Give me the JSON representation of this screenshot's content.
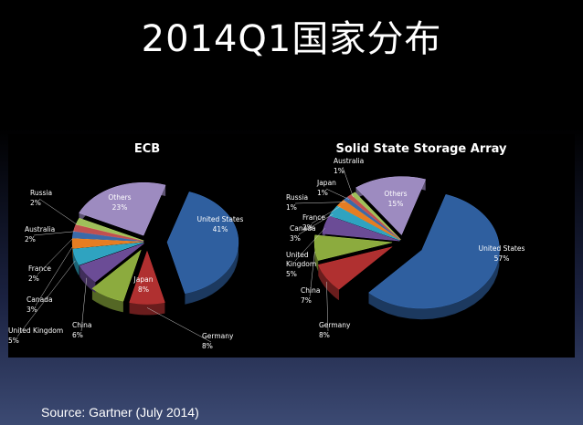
{
  "slide": {
    "title": "2014Q1国家分布",
    "source": "Source: Gartner (July 2014)"
  },
  "chart_data": [
    {
      "type": "pie",
      "title": "ECB",
      "slices": [
        {
          "label": "United States",
          "value": 41,
          "color": "#2f5f9f",
          "text": "41%"
        },
        {
          "label": "Germany",
          "value": 8,
          "color": "#b03030",
          "text": "8%"
        },
        {
          "label": "Japan",
          "value": 8,
          "color": "#8cab3e",
          "text": "8%"
        },
        {
          "label": "China",
          "value": 6,
          "color": "#6b4c96",
          "text": "6%"
        },
        {
          "label": "United Kingdom",
          "value": 5,
          "color": "#2fa3c0",
          "text": "5%"
        },
        {
          "label": "Canada",
          "value": 3,
          "color": "#e67d22",
          "text": "3%"
        },
        {
          "label": "France",
          "value": 2,
          "color": "#3b6aa8",
          "text": "2%"
        },
        {
          "label": "Australia",
          "value": 2,
          "color": "#c05050",
          "text": "2%"
        },
        {
          "label": "Russia",
          "value": 2,
          "color": "#9fbf5a",
          "text": "2%"
        },
        {
          "label": "Others",
          "value": 23,
          "color": "#9d8bc0",
          "text": "23%"
        }
      ]
    },
    {
      "type": "pie",
      "title": "Solid State Storage Array",
      "slices": [
        {
          "label": "United States",
          "value": 57,
          "color": "#2f5f9f",
          "text": "57%"
        },
        {
          "label": "Germany",
          "value": 8,
          "color": "#b03030",
          "text": "8%"
        },
        {
          "label": "China",
          "value": 7,
          "color": "#8cab3e",
          "text": "7%"
        },
        {
          "label": "United Kingdom",
          "value": 5,
          "color": "#6b4c96",
          "text": "5%"
        },
        {
          "label": "Canada",
          "value": 3,
          "color": "#2fa3c0",
          "text": "3%"
        },
        {
          "label": "France",
          "value": 2,
          "color": "#e67d22",
          "text": "2%"
        },
        {
          "label": "Russia",
          "value": 1,
          "color": "#3b6aa8",
          "text": "1%"
        },
        {
          "label": "Japan",
          "value": 1,
          "color": "#c05050",
          "text": "1%"
        },
        {
          "label": "Australia",
          "value": 1,
          "color": "#9fbf5a",
          "text": "1%"
        },
        {
          "label": "Others",
          "value": 15,
          "color": "#9d8bc0",
          "text": "15%"
        }
      ]
    }
  ]
}
